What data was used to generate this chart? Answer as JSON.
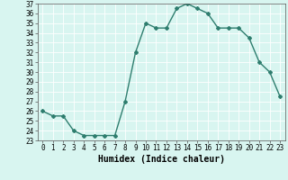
{
  "title": "",
  "xlabel": "Humidex (Indice chaleur)",
  "ylabel": "",
  "x": [
    0,
    1,
    2,
    3,
    4,
    5,
    6,
    7,
    8,
    9,
    10,
    11,
    12,
    13,
    14,
    15,
    16,
    17,
    18,
    19,
    20,
    21,
    22,
    23
  ],
  "y": [
    26.0,
    25.5,
    25.5,
    24.0,
    23.5,
    23.5,
    23.5,
    23.5,
    27.0,
    32.0,
    35.0,
    34.5,
    34.5,
    36.5,
    37.0,
    36.5,
    36.0,
    34.5,
    34.5,
    34.5,
    33.5,
    31.0,
    30.0,
    27.5
  ],
  "ylim": [
    23,
    37
  ],
  "xlim": [
    -0.5,
    23.5
  ],
  "yticks": [
    23,
    24,
    25,
    26,
    27,
    28,
    29,
    30,
    31,
    32,
    33,
    34,
    35,
    36,
    37
  ],
  "xticks": [
    0,
    1,
    2,
    3,
    4,
    5,
    6,
    7,
    8,
    9,
    10,
    11,
    12,
    13,
    14,
    15,
    16,
    17,
    18,
    19,
    20,
    21,
    22,
    23
  ],
  "line_color": "#2e7d6e",
  "marker": "D",
  "marker_size": 2.0,
  "line_width": 1.0,
  "bg_color": "#d8f5f0",
  "grid_color": "#ffffff",
  "tick_label_fontsize": 5.5,
  "xlabel_fontsize": 7.0
}
